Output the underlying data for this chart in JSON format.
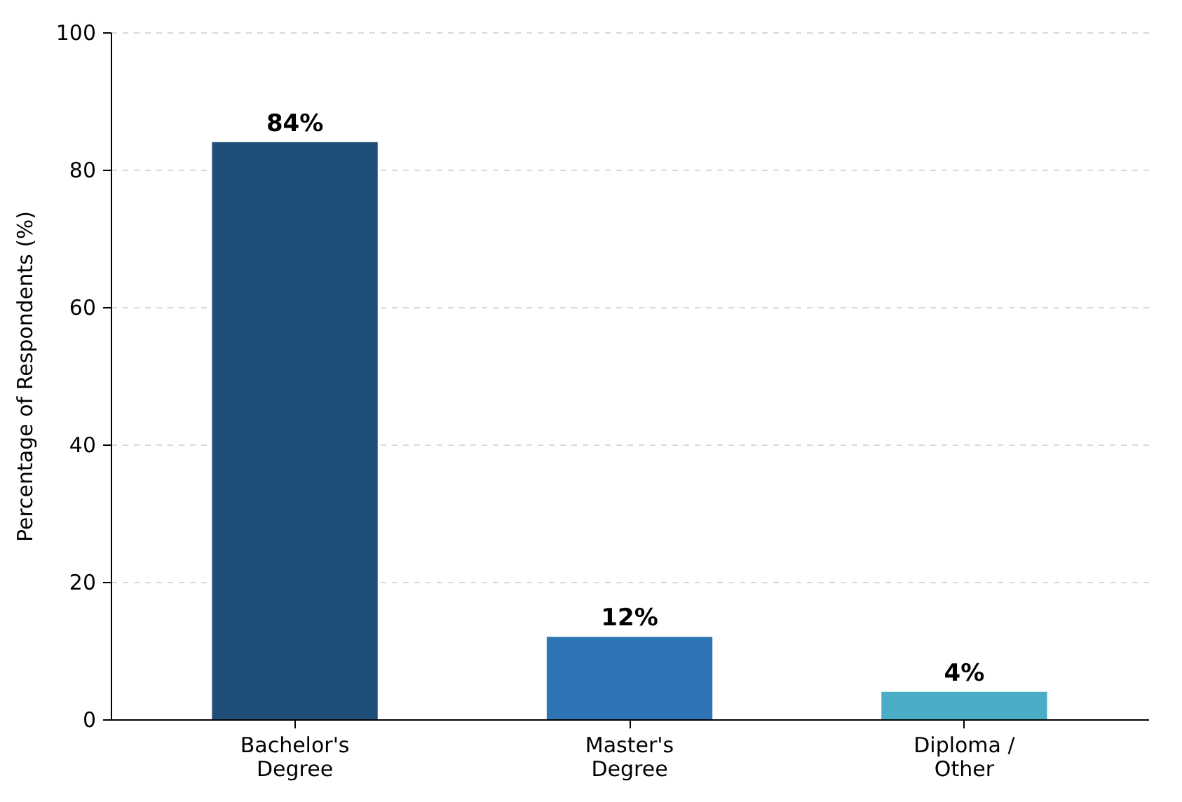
{
  "chart_data": {
    "type": "bar",
    "ylabel": "Percentage of Respondents (%)",
    "categories": [
      "Bachelor's Degree",
      "Master's Degree",
      "Diploma / Other"
    ],
    "values": [
      84,
      12,
      4
    ],
    "value_labels": [
      "84%",
      "12%",
      "4%"
    ],
    "colors": [
      "#1f4e79",
      "#2e75b6",
      "#4bacc6"
    ],
    "ylim": [
      0,
      100
    ],
    "yticks": [
      0,
      20,
      40,
      60,
      80,
      100
    ],
    "grid": "y"
  }
}
